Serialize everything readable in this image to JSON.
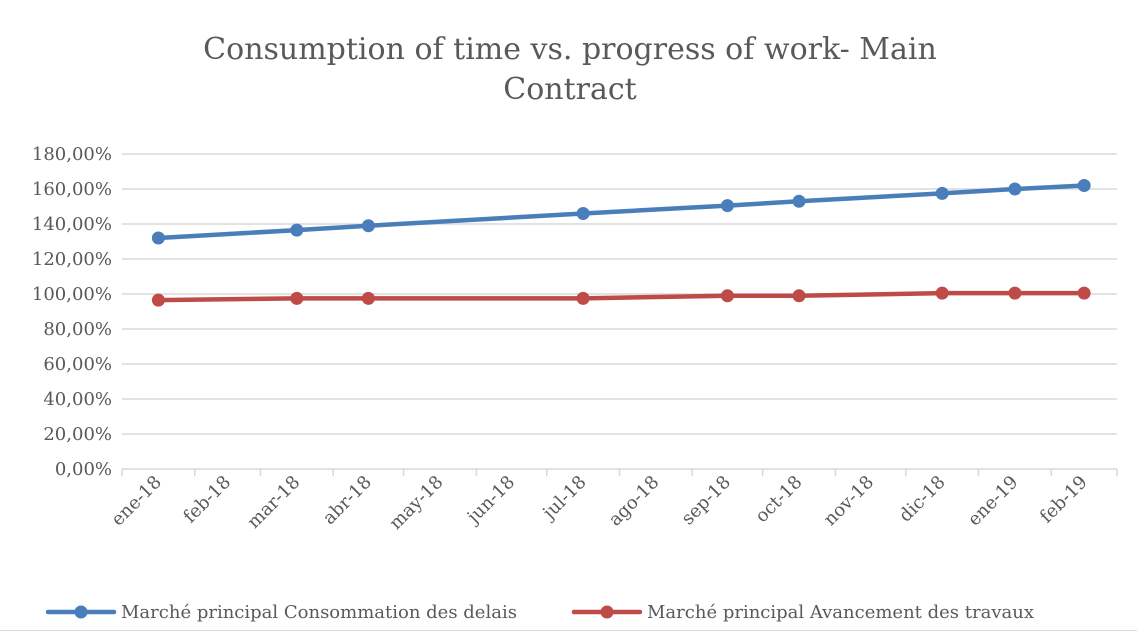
{
  "chart_data": {
    "type": "line",
    "title": "Consumption of time vs. progress of work- Main Contract",
    "xlabel": "",
    "ylabel": "",
    "categories": [
      "ene-18",
      "feb-18",
      "mar-18",
      "abr-18",
      "may-18",
      "jun-18",
      "jul-18",
      "ago-18",
      "sep-18",
      "oct-18",
      "nov-18",
      "dic-18",
      "ene-19",
      "feb-19"
    ],
    "x": [
      "2018-01-01",
      "2018-03-01",
      "2018-04-01",
      "2018-07-01",
      "2018-09-01",
      "2018-10-01",
      "2018-12-01",
      "2019-01-01",
      "2019-02-01"
    ],
    "ylim": [
      0,
      180
    ],
    "y_ticks": [
      "0,00%",
      "20,00%",
      "40,00%",
      "60,00%",
      "80,00%",
      "100,00%",
      "120,00%",
      "140,00%",
      "160,00%",
      "180,00%"
    ],
    "grid": true,
    "legend_position": "bottom",
    "series": [
      {
        "name": "Marché principal Consommation des delais",
        "color": "#4a7ebb",
        "values": [
          132,
          136.5,
          139,
          146,
          150.5,
          153,
          157.5,
          160,
          162
        ]
      },
      {
        "name": "Marché principal Avancement des travaux",
        "color": "#be4b48",
        "values": [
          96.5,
          97.5,
          97.5,
          97.5,
          99,
          99,
          100.5,
          100.5,
          100.5
        ]
      }
    ]
  }
}
